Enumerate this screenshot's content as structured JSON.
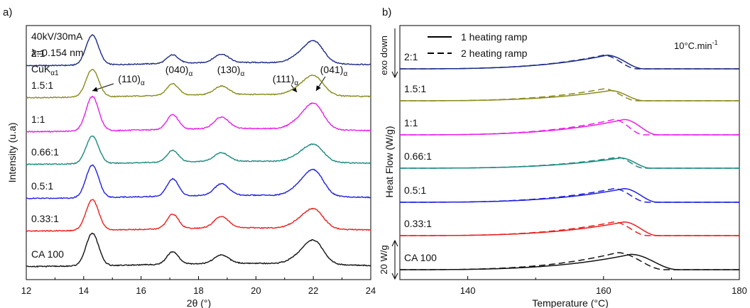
{
  "chart_data": [
    {
      "type": "line",
      "panel_label": "a)",
      "xlabel": "2θ (°)",
      "ylabel": "Intensity (u.a)",
      "xlim": [
        12,
        24
      ],
      "xticks": [
        12,
        14,
        16,
        18,
        20,
        22,
        24
      ],
      "grid": false,
      "info_lines": {
        "line1": "40kV/30mA",
        "line2": "λ=0.154 nm",
        "line3_main": "CuK",
        "line3_sub": "α1"
      },
      "peaks": [
        {
          "main": "(110)",
          "sub": "α",
          "x": 14.3,
          "has_arrow": true
        },
        {
          "main": "(040)",
          "sub": "α",
          "x": 17.1,
          "has_arrow": false
        },
        {
          "main": "(130)",
          "sub": "α",
          "x": 18.8,
          "has_arrow": false
        },
        {
          "main": "(111)",
          "sub": "α",
          "x": 21.4,
          "has_arrow": true
        },
        {
          "main": "(041)",
          "sub": "α",
          "x": 22.0,
          "has_arrow": true
        }
      ],
      "series": [
        {
          "name": "2:1",
          "color": "#1c2a85",
          "offset": 6,
          "intensity": [
            0.78,
            0.22,
            0.22,
            0.18,
            0.52
          ]
        },
        {
          "name": "1.5:1",
          "color": "#8a8a1e",
          "offset": 5,
          "intensity": [
            0.72,
            0.3,
            0.22,
            0.17,
            0.45
          ]
        },
        {
          "name": "1:1",
          "color": "#e81ee8",
          "offset": 4,
          "intensity": [
            0.9,
            0.38,
            0.3,
            0.21,
            0.6
          ]
        },
        {
          "name": "0.66:1",
          "color": "#1b8a7e",
          "offset": 3,
          "intensity": [
            0.72,
            0.3,
            0.22,
            0.16,
            0.4
          ]
        },
        {
          "name": "0.5:1",
          "color": "#1f1fe0",
          "offset": 2,
          "intensity": [
            0.85,
            0.45,
            0.3,
            0.23,
            0.6
          ]
        },
        {
          "name": "0.33:1",
          "color": "#e82020",
          "offset": 1,
          "intensity": [
            0.8,
            0.38,
            0.3,
            0.18,
            0.45
          ]
        },
        {
          "name": "CA 100",
          "color": "#111111",
          "offset": 0,
          "intensity": [
            0.85,
            0.32,
            0.22,
            0.2,
            0.55
          ]
        }
      ]
    },
    {
      "type": "line",
      "panel_label": "b)",
      "xlabel": "Temperature (°C)",
      "ylabel": "Heat Flow (W/g)",
      "xlim": [
        130,
        180
      ],
      "xticks": [
        140,
        160,
        180
      ],
      "grid": false,
      "legend": [
        {
          "label": "1 heating ramp",
          "style": "solid"
        },
        {
          "label": "2 heating ramp",
          "style": "dashed"
        }
      ],
      "rate_label": {
        "main": "10°C.min",
        "sup": "-1"
      },
      "exo_label": "exo down",
      "scale_bar_label": "20 W/g",
      "series": [
        {
          "name": "2:1",
          "color": "#1c2a85",
          "offset": 6,
          "ramp1_peak": 160.5,
          "ramp1_height": 0.4,
          "ramp1_end": 166,
          "ramp2_peak": 160.0,
          "ramp2_height": 0.4,
          "ramp2_end": 165
        },
        {
          "name": "1.5:1",
          "color": "#8a8a1e",
          "offset": 5,
          "ramp1_peak": 161.0,
          "ramp1_height": 0.3,
          "ramp1_end": 166,
          "ramp2_peak": 160.0,
          "ramp2_height": 0.35,
          "ramp2_end": 165
        },
        {
          "name": "1:1",
          "color": "#e81ee8",
          "offset": 4,
          "ramp1_peak": 163.0,
          "ramp1_height": 0.45,
          "ramp1_end": 168,
          "ramp2_peak": 161.5,
          "ramp2_height": 0.45,
          "ramp2_end": 166
        },
        {
          "name": "0.66:1",
          "color": "#1b8a7e",
          "offset": 3,
          "ramp1_peak": 162.5,
          "ramp1_height": 0.3,
          "ramp1_end": 167,
          "ramp2_peak": 162.0,
          "ramp2_height": 0.32,
          "ramp2_end": 166
        },
        {
          "name": "0.5:1",
          "color": "#1f1fe0",
          "offset": 2,
          "ramp1_peak": 163.0,
          "ramp1_height": 0.4,
          "ramp1_end": 168,
          "ramp2_peak": 161.5,
          "ramp2_height": 0.4,
          "ramp2_end": 166.5
        },
        {
          "name": "0.33:1",
          "color": "#e82020",
          "offset": 1,
          "ramp1_peak": 163.0,
          "ramp1_height": 0.4,
          "ramp1_end": 168,
          "ramp2_peak": 161.5,
          "ramp2_height": 0.4,
          "ramp2_end": 166.5
        },
        {
          "name": "CA 100",
          "color": "#111111",
          "offset": 0,
          "ramp1_peak": 164.0,
          "ramp1_height": 0.45,
          "ramp1_end": 171,
          "ramp2_peak": 162.0,
          "ramp2_height": 0.5,
          "ramp2_end": 169
        }
      ]
    }
  ]
}
